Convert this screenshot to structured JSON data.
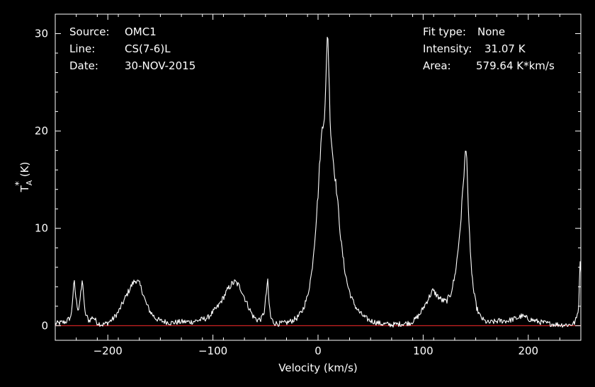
{
  "info": {
    "source_label": "Source:",
    "source_value": "OMC1",
    "line_label": "Line:",
    "line_value": "CS(7-6)L",
    "date_label": "Date:",
    "date_value": "30-NOV-2015",
    "fit_label": "Fit type:",
    "fit_value": "None",
    "intensity_label": "Intensity:",
    "intensity_value": "31.07 K",
    "area_label": "Area:",
    "area_value": "579.64 K*km/s"
  },
  "colors": {
    "background": "#000000",
    "spectrum": "#ffffff",
    "baseline": "#cc2222"
  },
  "chart_data": {
    "type": "line",
    "xlabel": "Velocity (km/s)",
    "ylabel": "T_A* (K)",
    "ylabel_parts": {
      "t": "T",
      "sub": "A",
      "sup": "*",
      "unit": "(K)"
    },
    "xlim": [
      -250,
      250
    ],
    "ylim": [
      -1.5,
      32
    ],
    "xticks": [
      -200,
      -100,
      0,
      100,
      200
    ],
    "xtick_labels": [
      "−200",
      "−100",
      "0",
      "100",
      "200"
    ],
    "yticks": [
      0,
      10,
      20,
      30
    ],
    "ytick_labels": [
      "0",
      "10",
      "20",
      "30"
    ],
    "baseline_y": 0,
    "grid": false,
    "series": [
      {
        "x": [
          -250,
          -245,
          -240,
          -235,
          -232,
          -230,
          -228,
          -226,
          -224,
          -222,
          -218,
          -214,
          -210,
          -205,
          -200,
          -195,
          -190,
          -185,
          -180,
          -176,
          -173,
          -170,
          -167,
          -164,
          -160,
          -155,
          -150,
          -145,
          -140,
          -130,
          -120,
          -112,
          -105,
          -100,
          -95,
          -90,
          -86,
          -82,
          -79,
          -76,
          -73,
          -70,
          -66,
          -62,
          -58,
          -54,
          -51,
          -49,
          -48,
          -47,
          -45,
          -42,
          -38,
          -30,
          -25,
          -20,
          -15,
          -10,
          -6,
          -3,
          0,
          2,
          4,
          6,
          7,
          8,
          9,
          10,
          11,
          12,
          14,
          16,
          18,
          20,
          22,
          25,
          28,
          32,
          36,
          40,
          45,
          50,
          60,
          70,
          80,
          88,
          92,
          97,
          102,
          106,
          109,
          111,
          114,
          118,
          122,
          126,
          130,
          133,
          136,
          138,
          140,
          141,
          142,
          143,
          145,
          148,
          151,
          154,
          158,
          162,
          167,
          172,
          180,
          190,
          194,
          200,
          210,
          220,
          230,
          240,
          244,
          246,
          248,
          249,
          250
        ],
        "y": [
          0.2,
          0.3,
          0.4,
          0.9,
          4.6,
          2.5,
          1.6,
          3.0,
          4.8,
          1.4,
          0.5,
          0.9,
          0.3,
          0.1,
          0.3,
          0.7,
          1.4,
          2.5,
          3.6,
          4.4,
          4.7,
          4.3,
          3.5,
          2.4,
          1.5,
          0.8,
          0.5,
          0.4,
          0.3,
          0.4,
          0.4,
          0.6,
          0.8,
          1.4,
          2.0,
          2.9,
          3.7,
          4.3,
          4.5,
          4.2,
          3.7,
          2.9,
          1.9,
          1.0,
          0.6,
          0.7,
          1.5,
          3.6,
          4.8,
          2.8,
          0.8,
          0.3,
          0.2,
          0.3,
          0.5,
          0.8,
          1.5,
          3.0,
          5.5,
          9.0,
          13.5,
          17.5,
          20.5,
          21.5,
          23.0,
          27.0,
          31.0,
          27.5,
          23.0,
          20.0,
          17.5,
          15.5,
          13.5,
          11.0,
          8.5,
          6.0,
          4.2,
          2.8,
          1.9,
          1.3,
          0.8,
          0.5,
          0.2,
          0.1,
          0.2,
          0.3,
          0.6,
          1.2,
          2.2,
          3.0,
          3.6,
          3.4,
          3.0,
          2.6,
          2.5,
          3.2,
          5.0,
          7.5,
          11.0,
          14.5,
          17.5,
          18.0,
          16.0,
          12.0,
          7.0,
          3.5,
          1.8,
          1.0,
          0.5,
          0.3,
          0.4,
          0.5,
          0.5,
          0.8,
          1.0,
          0.7,
          0.4,
          0.2,
          0.1,
          0.1,
          0.3,
          0.8,
          2.0,
          6.5,
          5.8
        ]
      }
    ]
  }
}
